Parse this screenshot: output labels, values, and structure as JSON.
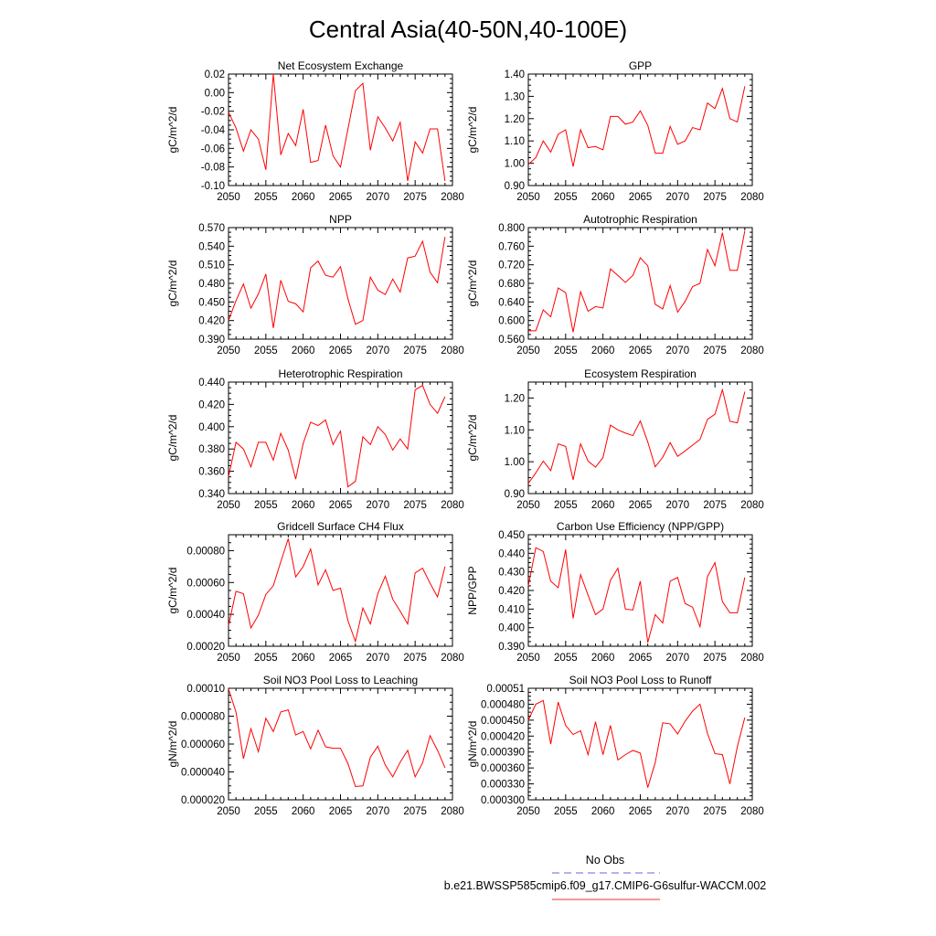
{
  "title": "Central Asia(40-50N,40-100E)",
  "legend": {
    "obs_label": "No Obs",
    "obs_color": "#6666dd",
    "model_label": "b.e21.BWSSP585cmip6.f09_g17.CMIP6-G6sulfur-WACCM.002",
    "model_color": "#e83030"
  },
  "line_color": "#ff0000",
  "chart_data": [
    {
      "type": "line",
      "title": "Net Ecosystem Exchange",
      "ylabel": "gC/m^2/d",
      "ylim": [
        -0.1,
        0.02
      ],
      "yticks": [
        "-0.10",
        "-0.08",
        "-0.06",
        "-0.04",
        "-0.02",
        "0.00",
        "0.02"
      ],
      "xlim": [
        2050,
        2080
      ],
      "xticks": [
        "2050",
        "2055",
        "2060",
        "2065",
        "2070",
        "2075",
        "2080"
      ],
      "x": [
        2050,
        2051,
        2052,
        2053,
        2054,
        2055,
        2056,
        2057,
        2058,
        2059,
        2060,
        2061,
        2062,
        2063,
        2064,
        2065,
        2066,
        2067,
        2068,
        2069,
        2070,
        2071,
        2072,
        2073,
        2074,
        2075,
        2076,
        2077,
        2078,
        2079
      ],
      "values": [
        -0.021,
        -0.038,
        -0.063,
        -0.04,
        -0.05,
        -0.083,
        0.02,
        -0.067,
        -0.044,
        -0.057,
        -0.018,
        -0.075,
        -0.073,
        -0.035,
        -0.068,
        -0.08,
        -0.039,
        0.002,
        0.01,
        -0.062,
        -0.026,
        -0.038,
        -0.052,
        -0.032,
        -0.095,
        -0.053,
        -0.065,
        -0.039,
        -0.039,
        -0.095
      ]
    },
    {
      "type": "line",
      "title": "GPP",
      "ylabel": "gC/m^2/d",
      "ylim": [
        0.9,
        1.4
      ],
      "yticks": [
        "0.90",
        "1.00",
        "1.10",
        "1.20",
        "1.30",
        "1.40"
      ],
      "xlim": [
        2050,
        2080
      ],
      "xticks": [
        "2050",
        "2055",
        "2060",
        "2065",
        "2070",
        "2075",
        "2080"
      ],
      "x": [
        2050,
        2051,
        2052,
        2053,
        2054,
        2055,
        2056,
        2057,
        2058,
        2059,
        2060,
        2061,
        2062,
        2063,
        2064,
        2065,
        2066,
        2067,
        2068,
        2069,
        2070,
        2071,
        2072,
        2073,
        2074,
        2075,
        2076,
        2077,
        2078,
        2079
      ],
      "values": [
        0.995,
        1.025,
        1.1,
        1.05,
        1.13,
        1.15,
        0.985,
        1.15,
        1.07,
        1.075,
        1.06,
        1.21,
        1.21,
        1.175,
        1.185,
        1.235,
        1.17,
        1.045,
        1.045,
        1.165,
        1.085,
        1.1,
        1.16,
        1.15,
        1.27,
        1.245,
        1.335,
        1.2,
        1.185,
        1.345
      ]
    },
    {
      "type": "line",
      "title": "NPP",
      "ylabel": "gC/m^2/d",
      "ylim": [
        0.39,
        0.57
      ],
      "yticks": [
        "0.390",
        "0.420",
        "0.450",
        "0.480",
        "0.510",
        "0.540",
        "0.570"
      ],
      "xlim": [
        2050,
        2080
      ],
      "xticks": [
        "2050",
        "2055",
        "2060",
        "2065",
        "2070",
        "2075",
        "2080"
      ],
      "x": [
        2050,
        2051,
        2052,
        2053,
        2054,
        2055,
        2056,
        2057,
        2058,
        2059,
        2060,
        2061,
        2062,
        2063,
        2064,
        2065,
        2066,
        2067,
        2068,
        2069,
        2070,
        2071,
        2072,
        2073,
        2074,
        2075,
        2076,
        2077,
        2078,
        2079
      ],
      "values": [
        0.42,
        0.452,
        0.479,
        0.44,
        0.463,
        0.495,
        0.408,
        0.485,
        0.451,
        0.447,
        0.434,
        0.505,
        0.516,
        0.493,
        0.49,
        0.507,
        0.455,
        0.414,
        0.42,
        0.49,
        0.469,
        0.462,
        0.487,
        0.466,
        0.521,
        0.524,
        0.548,
        0.498,
        0.481,
        0.555
      ]
    },
    {
      "type": "line",
      "title": "Autotrophic Respiration",
      "ylabel": "gC/m^2/d",
      "ylim": [
        0.56,
        0.8
      ],
      "yticks": [
        "0.560",
        "0.600",
        "0.640",
        "0.680",
        "0.720",
        "0.760",
        "0.800"
      ],
      "xlim": [
        2050,
        2080
      ],
      "xticks": [
        "2050",
        "2055",
        "2060",
        "2065",
        "2070",
        "2075",
        "2080"
      ],
      "x": [
        2050,
        2051,
        2052,
        2053,
        2054,
        2055,
        2056,
        2057,
        2058,
        2059,
        2060,
        2061,
        2062,
        2063,
        2064,
        2065,
        2066,
        2067,
        2068,
        2069,
        2070,
        2071,
        2072,
        2073,
        2074,
        2075,
        2076,
        2077,
        2078,
        2079
      ],
      "values": [
        0.578,
        0.578,
        0.623,
        0.608,
        0.67,
        0.66,
        0.575,
        0.662,
        0.62,
        0.63,
        0.627,
        0.711,
        0.697,
        0.682,
        0.697,
        0.735,
        0.718,
        0.635,
        0.625,
        0.675,
        0.618,
        0.641,
        0.673,
        0.68,
        0.753,
        0.718,
        0.789,
        0.708,
        0.708,
        0.793
      ]
    },
    {
      "type": "line",
      "title": "Heterotrophic Respiration",
      "ylabel": "gC/m^2/d",
      "ylim": [
        0.34,
        0.44
      ],
      "yticks": [
        "0.340",
        "0.360",
        "0.380",
        "0.400",
        "0.420",
        "0.440"
      ],
      "xlim": [
        2050,
        2080
      ],
      "xticks": [
        "2050",
        "2055",
        "2060",
        "2065",
        "2070",
        "2075",
        "2080"
      ],
      "x": [
        2050,
        2051,
        2052,
        2053,
        2054,
        2055,
        2056,
        2057,
        2058,
        2059,
        2060,
        2061,
        2062,
        2063,
        2064,
        2065,
        2066,
        2067,
        2068,
        2069,
        2070,
        2071,
        2072,
        2073,
        2074,
        2075,
        2076,
        2077,
        2078,
        2079
      ],
      "values": [
        0.355,
        0.386,
        0.38,
        0.364,
        0.386,
        0.386,
        0.37,
        0.394,
        0.379,
        0.353,
        0.385,
        0.404,
        0.401,
        0.406,
        0.384,
        0.396,
        0.346,
        0.351,
        0.391,
        0.384,
        0.4,
        0.393,
        0.379,
        0.389,
        0.38,
        0.433,
        0.437,
        0.42,
        0.412,
        0.427
      ]
    },
    {
      "type": "line",
      "title": "Ecosystem Respiration",
      "ylabel": "gC/m^2/d",
      "ylim": [
        0.9,
        1.25
      ],
      "yticks": [
        "0.90",
        "1.00",
        "1.10",
        "1.20"
      ],
      "xlim": [
        2050,
        2080
      ],
      "xticks": [
        "2050",
        "2055",
        "2060",
        "2065",
        "2070",
        "2075",
        "2080"
      ],
      "x": [
        2050,
        2051,
        2052,
        2053,
        2054,
        2055,
        2056,
        2057,
        2058,
        2059,
        2060,
        2061,
        2062,
        2063,
        2064,
        2065,
        2066,
        2067,
        2068,
        2069,
        2070,
        2071,
        2072,
        2073,
        2074,
        2075,
        2076,
        2077,
        2078,
        2079
      ],
      "values": [
        0.932,
        0.965,
        1.002,
        0.972,
        1.056,
        1.048,
        0.943,
        1.056,
        1.002,
        0.983,
        1.013,
        1.115,
        1.1,
        1.09,
        1.082,
        1.128,
        1.062,
        0.984,
        1.014,
        1.06,
        1.017,
        1.034,
        1.052,
        1.07,
        1.133,
        1.149,
        1.226,
        1.127,
        1.122,
        1.22
      ]
    },
    {
      "type": "line",
      "title": "Gridcell Surface CH4 Flux",
      "ylabel": "gC/m^2/d",
      "ylim": [
        0.0002,
        0.0009
      ],
      "yticks": [
        "0.00020",
        "0.00040",
        "0.00060",
        "0.00080"
      ],
      "xlim": [
        2050,
        2080
      ],
      "xticks": [
        "2050",
        "2055",
        "2060",
        "2065",
        "2070",
        "2075",
        "2080"
      ],
      "x": [
        2050,
        2051,
        2052,
        2053,
        2054,
        2055,
        2056,
        2057,
        2058,
        2059,
        2060,
        2061,
        2062,
        2063,
        2064,
        2065,
        2066,
        2067,
        2068,
        2069,
        2070,
        2071,
        2072,
        2073,
        2074,
        2075,
        2076,
        2077,
        2078,
        2079
      ],
      "values": [
        0.00033,
        0.000545,
        0.00053,
        0.000315,
        0.000395,
        0.000525,
        0.00058,
        0.00073,
        0.000875,
        0.000635,
        0.0007,
        0.00081,
        0.000585,
        0.00068,
        0.00055,
        0.000565,
        0.00036,
        0.00023,
        0.00044,
        0.00034,
        0.00053,
        0.00064,
        0.000495,
        0.00042,
        0.00034,
        0.00066,
        0.00069,
        0.000595,
        0.00051,
        0.0007
      ]
    },
    {
      "type": "line",
      "title": "Carbon Use Efficiency (NPP/GPP)",
      "ylabel": "NPP/GPP",
      "ylim": [
        0.39,
        0.45
      ],
      "yticks": [
        "0.390",
        "0.400",
        "0.410",
        "0.420",
        "0.430",
        "0.440",
        "0.450"
      ],
      "xlim": [
        2050,
        2080
      ],
      "xticks": [
        "2050",
        "2055",
        "2060",
        "2065",
        "2070",
        "2075",
        "2080"
      ],
      "x": [
        2050,
        2051,
        2052,
        2053,
        2054,
        2055,
        2056,
        2057,
        2058,
        2059,
        2060,
        2061,
        2062,
        2063,
        2064,
        2065,
        2066,
        2067,
        2068,
        2069,
        2070,
        2071,
        2072,
        2073,
        2074,
        2075,
        2076,
        2077,
        2078,
        2079
      ],
      "values": [
        0.4225,
        0.443,
        0.441,
        0.425,
        0.4215,
        0.442,
        0.405,
        0.4285,
        0.4175,
        0.407,
        0.41,
        0.4255,
        0.432,
        0.41,
        0.4095,
        0.425,
        0.392,
        0.407,
        0.4025,
        0.425,
        0.427,
        0.413,
        0.411,
        0.4005,
        0.4275,
        0.435,
        0.414,
        0.408,
        0.408,
        0.427
      ]
    },
    {
      "type": "line",
      "title": "Soil NO3 Pool Loss to Leaching",
      "ylabel": "gN/m^2/d",
      "ylim": [
        2e-05,
        0.0001
      ],
      "yticks": [
        "0.000020",
        "0.000040",
        "0.000060",
        "0.000080",
        "0.00010"
      ],
      "xlim": [
        2050,
        2080
      ],
      "xticks": [
        "2050",
        "2055",
        "2060",
        "2065",
        "2070",
        "2075",
        "2080"
      ],
      "x": [
        2050,
        2051,
        2052,
        2053,
        2054,
        2055,
        2056,
        2057,
        2058,
        2059,
        2060,
        2061,
        2062,
        2063,
        2064,
        2065,
        2066,
        2067,
        2068,
        2069,
        2070,
        2071,
        2072,
        2073,
        2074,
        2075,
        2076,
        2077,
        2078,
        2079
      ],
      "values": [
        9.95e-05,
        8.3e-05,
        4.95e-05,
        7.1e-05,
        5.45e-05,
        7.85e-05,
        6.9e-05,
        8.3e-05,
        8.45e-05,
        6.65e-05,
        6.9e-05,
        5.65e-05,
        7e-05,
        5.8e-05,
        5.7e-05,
        5.7e-05,
        4.6e-05,
        2.95e-05,
        3e-05,
        5.05e-05,
        5.85e-05,
        4.5e-05,
        3.65e-05,
        4.7e-05,
        5.55e-05,
        3.65e-05,
        4.65e-05,
        6.6e-05,
        5.55e-05,
        4.3e-05
      ]
    },
    {
      "type": "line",
      "title": "Soil NO3 Pool Loss to Runoff",
      "ylabel": "gN/m^2/d",
      "ylim": [
        0.0003,
        0.00051
      ],
      "yticks": [
        "0.000300",
        "0.000330",
        "0.000360",
        "0.000390",
        "0.000420",
        "0.000450",
        "0.000480",
        "0.00051"
      ],
      "xlim": [
        2050,
        2080
      ],
      "xticks": [
        "2050",
        "2055",
        "2060",
        "2065",
        "2070",
        "2075",
        "2080"
      ],
      "x": [
        2050,
        2051,
        2052,
        2053,
        2054,
        2055,
        2056,
        2057,
        2058,
        2059,
        2060,
        2061,
        2062,
        2063,
        2064,
        2065,
        2066,
        2067,
        2068,
        2069,
        2070,
        2071,
        2072,
        2073,
        2074,
        2075,
        2076,
        2077,
        2078,
        2079
      ],
      "values": [
        0.00045,
        0.00048,
        0.000487,
        0.000405,
        0.000484,
        0.00044,
        0.000423,
        0.00043,
        0.000385,
        0.000447,
        0.000385,
        0.00044,
        0.000375,
        0.000385,
        0.000393,
        0.000388,
        0.000323,
        0.00037,
        0.000445,
        0.000443,
        0.000424,
        0.000448,
        0.000467,
        0.00048,
        0.000425,
        0.000387,
        0.000385,
        0.00033,
        0.0004,
        0.000455
      ]
    }
  ]
}
